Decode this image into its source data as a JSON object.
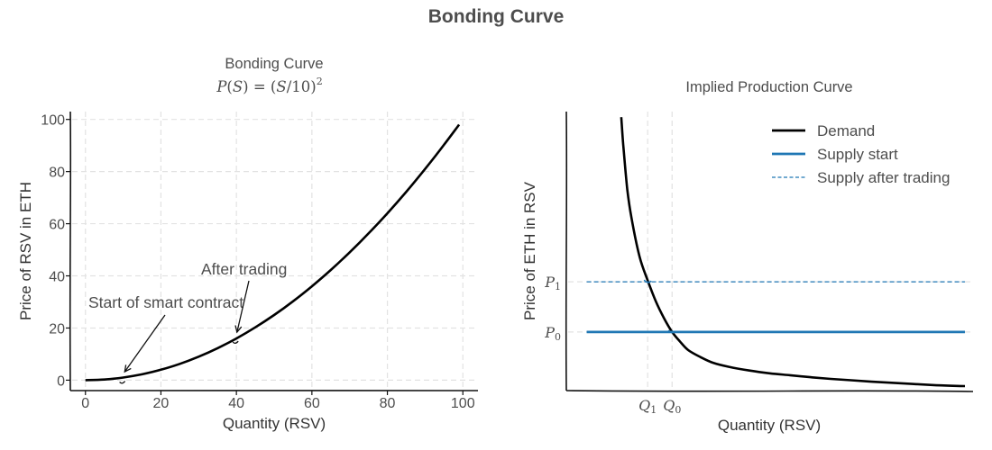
{
  "figure": {
    "suptitle": "Bonding Curve"
  },
  "chart_data": [
    {
      "type": "line",
      "title": "Bonding Curve",
      "subtitle": "P(S) = (S/10)²",
      "xlabel": "Quantity (RSV)",
      "ylabel": "Price of RSV in ETH",
      "xlim": [
        -4,
        104
      ],
      "ylim": [
        -4,
        103
      ],
      "xticks": [
        0,
        20,
        40,
        60,
        80,
        100
      ],
      "yticks": [
        0,
        20,
        40,
        60,
        80,
        100
      ],
      "grid": true,
      "series": [
        {
          "x": [
            0,
            5,
            10,
            15,
            20,
            25,
            30,
            35,
            40,
            45,
            50,
            55,
            60,
            65,
            70,
            75,
            80,
            85,
            90,
            95,
            99
          ],
          "y": [
            0,
            0.25,
            1,
            2.25,
            4,
            6.25,
            9,
            12.25,
            16,
            20.25,
            25,
            30.25,
            36,
            42.25,
            49,
            56.25,
            64,
            72.25,
            81,
            90.25,
            98.01
          ],
          "color": "#000000"
        }
      ],
      "annotations": [
        {
          "text": "Start of smart contract",
          "point": [
            10,
            1
          ]
        },
        {
          "text": "After trading",
          "point": [
            40,
            16
          ]
        }
      ]
    },
    {
      "type": "line",
      "title": "Implied Production Curve",
      "xlabel": "Quantity (RSV)",
      "ylabel": "Price of ETH in RSV",
      "xlim": [
        0,
        100
      ],
      "ylim": [
        0,
        100
      ],
      "grid": false,
      "xticks": [
        {
          "main": "Q",
          "sub": "1",
          "value": 20
        },
        {
          "main": "Q",
          "sub": "0",
          "value": 26
        }
      ],
      "yticks": [
        {
          "main": "P",
          "sub": "1",
          "value": 39
        },
        {
          "main": "P",
          "sub": "0",
          "value": 21
        }
      ],
      "series": [
        {
          "name": "Demand",
          "style": "solid",
          "color": "#000000",
          "x": [
            13.5,
            14,
            15,
            16,
            18,
            20,
            22,
            24,
            26,
            28,
            30,
            33,
            36,
            40,
            45,
            50,
            55,
            60,
            65,
            70,
            75,
            80,
            85,
            90,
            95,
            98
          ],
          "y": [
            98,
            88,
            72,
            62,
            48,
            39.5,
            32,
            26,
            21,
            17.5,
            14.5,
            12,
            10,
            8.5,
            7.2,
            6.2,
            5.5,
            4.8,
            4.2,
            3.7,
            3.2,
            2.8,
            2.4,
            2,
            1.7,
            1.6
          ]
        },
        {
          "name": "Supply start",
          "style": "solid",
          "color": "#1f77b4",
          "x": [
            5,
            98
          ],
          "y": [
            21,
            21
          ]
        },
        {
          "name": "Supply after trading",
          "style": "dashed",
          "color": "#1f77b4",
          "x": [
            5,
            98
          ],
          "y": [
            39,
            39
          ]
        }
      ],
      "legend": {
        "position": "top-right"
      }
    }
  ]
}
